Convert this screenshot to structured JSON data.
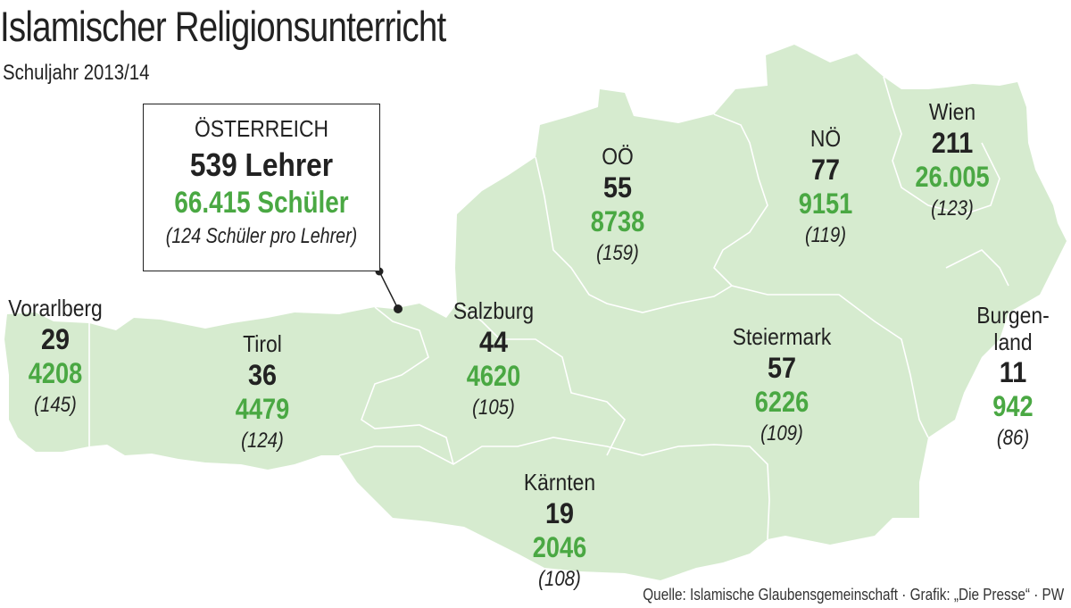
{
  "title": "Islamischer Religionsunterricht",
  "subtitle": "Schuljahr 2013/14",
  "total": {
    "label": "ÖSTERREICH",
    "teachers": "539 Lehrer",
    "students": "66.415 Schüler",
    "ratio": "(124 Schüler pro Lehrer)"
  },
  "regions": [
    {
      "id": "vorarlberg",
      "name": "Vorarlberg",
      "teachers": "29",
      "students": "4208",
      "ratio": "(145)"
    },
    {
      "id": "tirol",
      "name": "Tirol",
      "teachers": "36",
      "students": "4479",
      "ratio": "(124)"
    },
    {
      "id": "salzburg",
      "name": "Salzburg",
      "teachers": "44",
      "students": "4620",
      "ratio": "(105)"
    },
    {
      "id": "ooe",
      "name": "OÖ",
      "teachers": "55",
      "students": "8738",
      "ratio": "(159)"
    },
    {
      "id": "noe",
      "name": "NÖ",
      "teachers": "77",
      "students": "9151",
      "ratio": "(119)"
    },
    {
      "id": "wien",
      "name": "Wien",
      "teachers": "211",
      "students": "26.005",
      "ratio": "(123)"
    },
    {
      "id": "steiermark",
      "name": "Steiermark",
      "teachers": "57",
      "students": "6226",
      "ratio": "(109)"
    },
    {
      "id": "kaernten",
      "name": "Kärnten",
      "teachers": "19",
      "students": "2046",
      "ratio": "(108)"
    },
    {
      "id": "burgenland",
      "name": "Burgen-",
      "name2": "land",
      "teachers": "11",
      "students": "942",
      "ratio": "(86)"
    }
  ],
  "source": "Quelle: Islamische Glaubensgemeinschaft · Grafik: „Die Presse“ · PW",
  "colors": {
    "land": "#d6ebcf",
    "border": "#ffffff",
    "students": "#4aa843",
    "text": "#222222"
  }
}
